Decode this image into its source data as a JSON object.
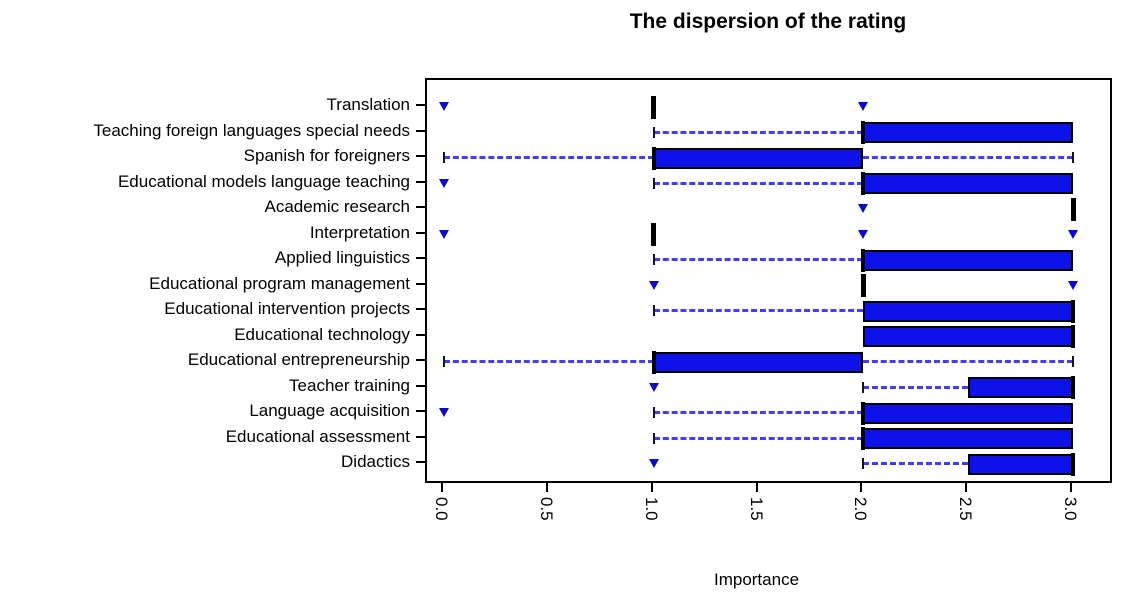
{
  "chart_data": {
    "type": "boxplot-horizontal",
    "title": "The dispersion of the rating",
    "xlabel": "Importance",
    "xlim": [
      0.0,
      3.0
    ],
    "x_ticks": [
      0,
      0.5,
      1,
      1.5,
      2,
      2.5,
      3
    ],
    "x_tick_labels": [
      "0.0",
      "0.5",
      "1.0",
      "1.5",
      "2.0",
      "2.5",
      "3.0"
    ],
    "grid": false,
    "legend": "none",
    "colors": {
      "box_fill": "#0D13E8",
      "box_border": "#000000",
      "median": "#000000",
      "whisker": "#4040EE",
      "whisker_cap": "#141414",
      "outlier": "#0A0AC8"
    },
    "categories": [
      "Translation",
      "Teaching foreign languages special needs",
      "Spanish for foreigners",
      "Educational models language teaching",
      "Academic research",
      "Interpretation",
      "Applied linguistics",
      "Educational program management",
      "Educational intervention projects",
      "Educational technology",
      "Educational entrepreneurship",
      "Teacher training",
      "Language acquisition",
      "Educational assessment",
      "Didactics"
    ],
    "series": [
      {
        "label": "Translation",
        "low": 1,
        "q1": 1,
        "median": 1,
        "q3": 1,
        "high": 1,
        "outliers": [
          0,
          2
        ]
      },
      {
        "label": "Teaching foreign languages special needs",
        "low": 1,
        "q1": 2,
        "median": 2,
        "q3": 3,
        "high": 3,
        "outliers": []
      },
      {
        "label": "Spanish for foreigners",
        "low": 0,
        "q1": 1,
        "median": 1,
        "q3": 2,
        "high": 3,
        "outliers": []
      },
      {
        "label": "Educational models language teaching",
        "low": 1,
        "q1": 2,
        "median": 2,
        "q3": 3,
        "high": 3,
        "outliers": [
          0
        ]
      },
      {
        "label": "Academic research",
        "low": 3,
        "q1": 3,
        "median": 3,
        "q3": 3,
        "high": 3,
        "outliers": [
          2
        ]
      },
      {
        "label": "Interpretation",
        "low": 1,
        "q1": 1,
        "median": 1,
        "q3": 1,
        "high": 1,
        "outliers": [
          0,
          2,
          3
        ]
      },
      {
        "label": "Applied linguistics",
        "low": 1,
        "q1": 2,
        "median": 2,
        "q3": 3,
        "high": 3,
        "outliers": []
      },
      {
        "label": "Educational program management",
        "low": 2,
        "q1": 2,
        "median": 2,
        "q3": 2,
        "high": 2,
        "outliers": [
          1,
          3
        ]
      },
      {
        "label": "Educational intervention projects",
        "low": 1,
        "q1": 2,
        "median": 3,
        "q3": 3,
        "high": 3,
        "outliers": []
      },
      {
        "label": "Educational technology",
        "low": 2,
        "q1": 2,
        "median": 3,
        "q3": 3,
        "high": 3,
        "outliers": []
      },
      {
        "label": "Educational entrepreneurship",
        "low": 0,
        "q1": 1,
        "median": 1,
        "q3": 2,
        "high": 3,
        "outliers": []
      },
      {
        "label": "Teacher training",
        "low": 2,
        "q1": 2.5,
        "median": 3,
        "q3": 3,
        "high": 3,
        "outliers": [
          1
        ]
      },
      {
        "label": "Language acquisition",
        "low": 1,
        "q1": 2,
        "median": 2,
        "q3": 3,
        "high": 3,
        "outliers": [
          0
        ]
      },
      {
        "label": "Educational assessment",
        "low": 1,
        "q1": 2,
        "median": 2,
        "q3": 3,
        "high": 3,
        "outliers": []
      },
      {
        "label": "Didactics",
        "low": 2,
        "q1": 2.5,
        "median": 3,
        "q3": 3,
        "high": 3,
        "outliers": [
          1
        ]
      }
    ]
  }
}
